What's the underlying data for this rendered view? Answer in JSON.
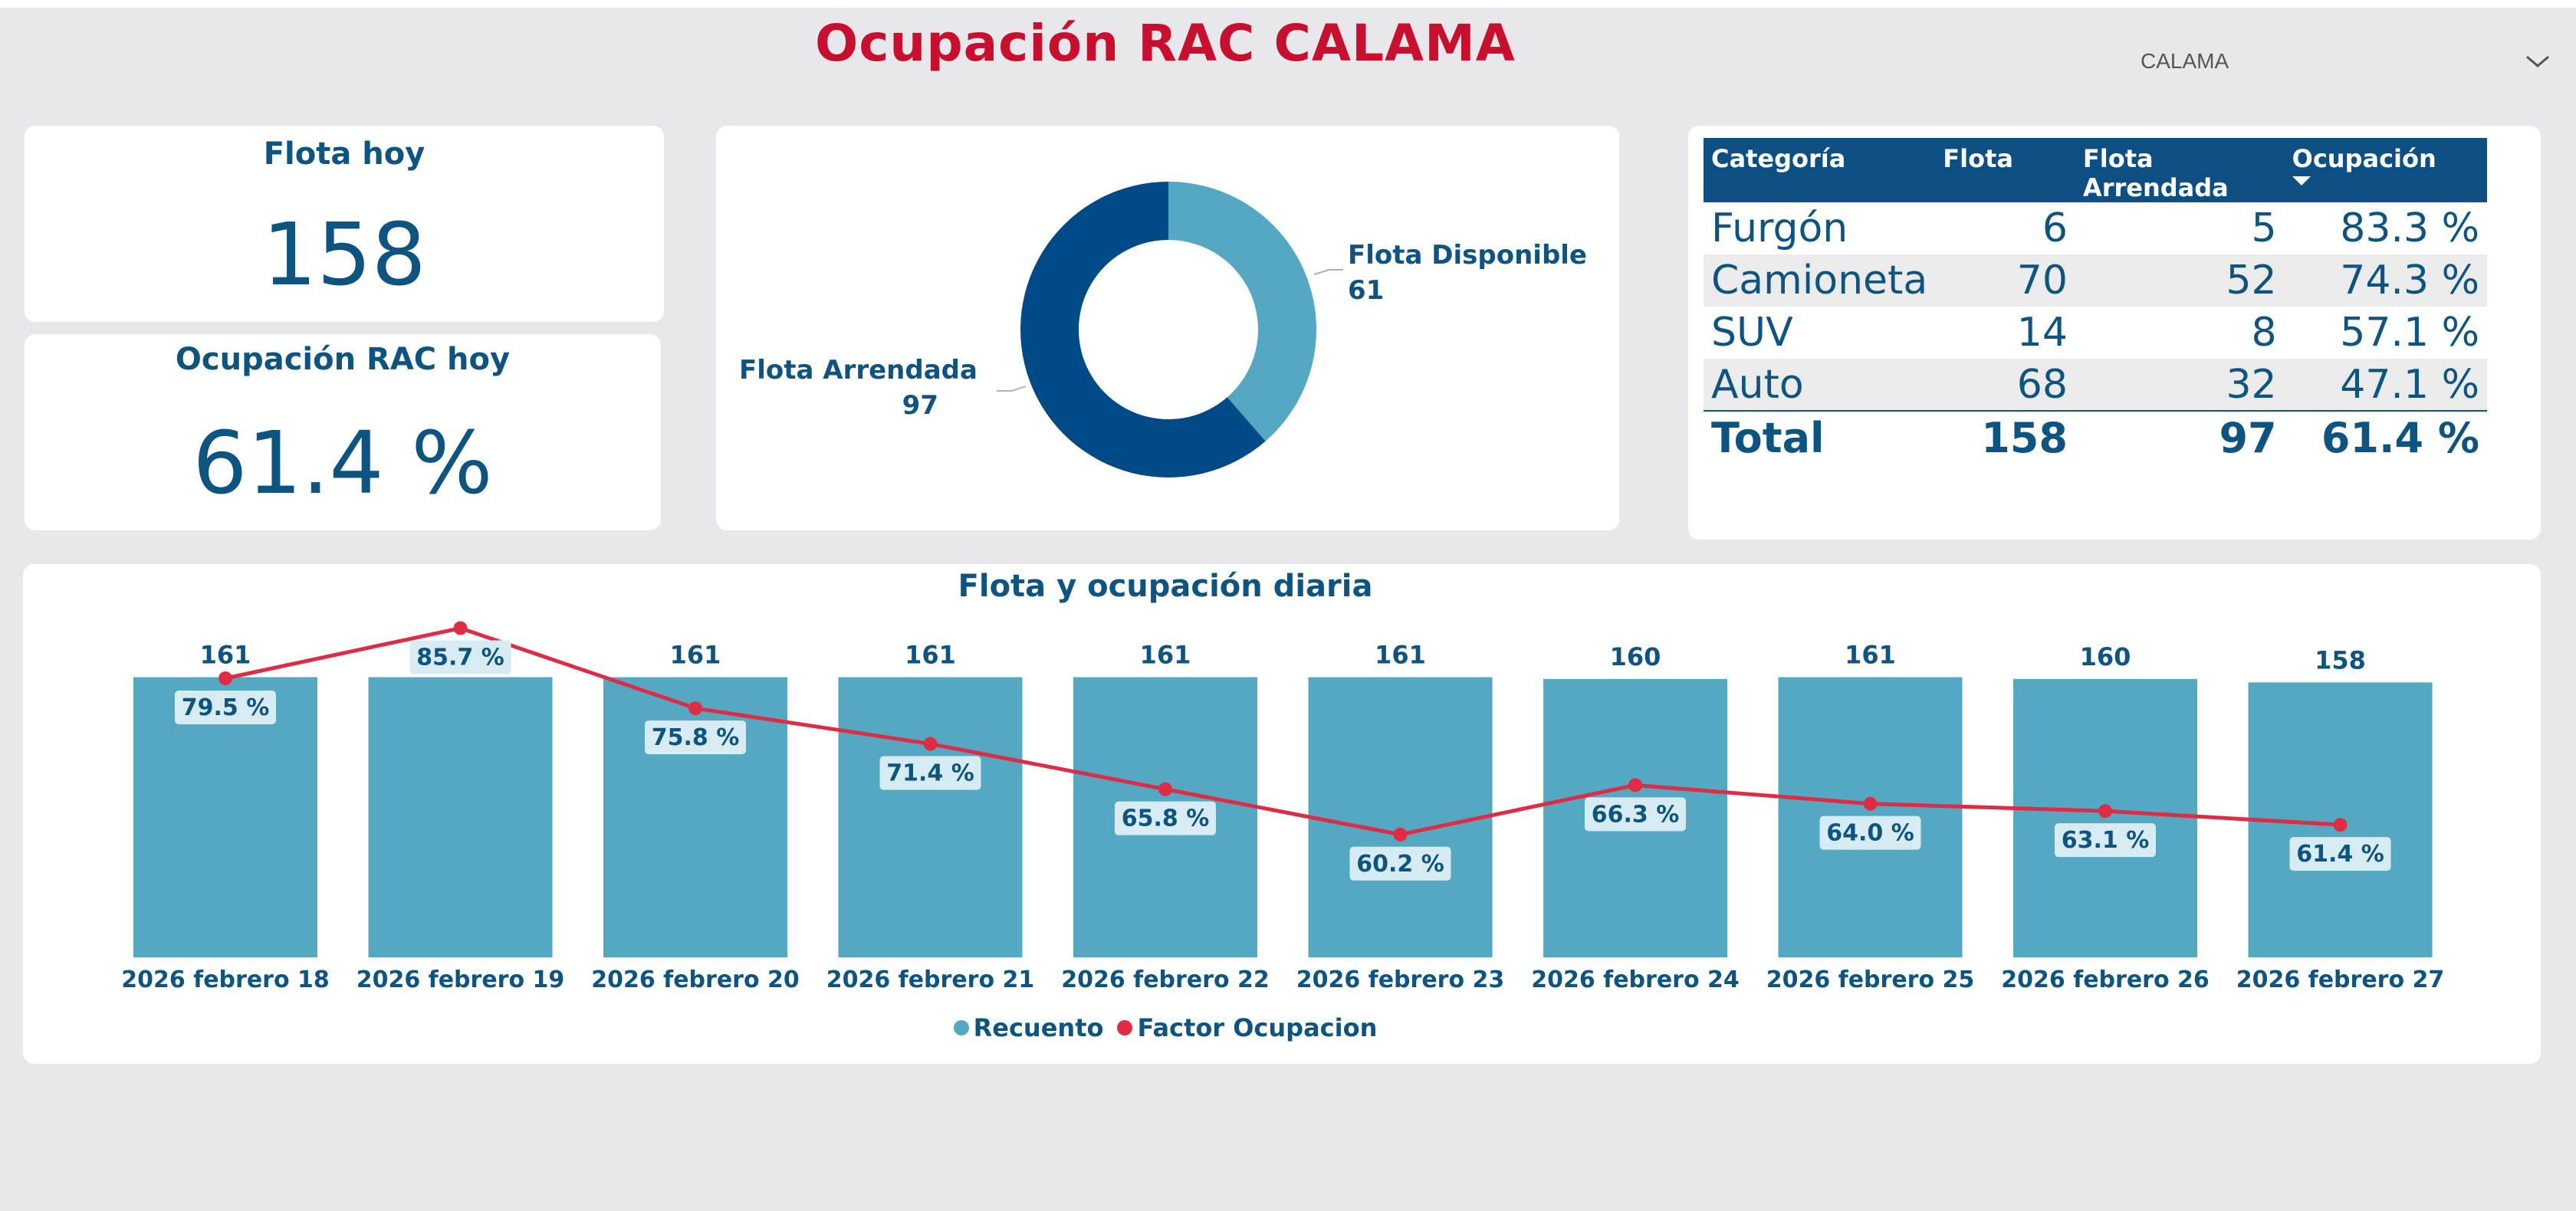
{
  "header": {
    "title": "Ocupación RAC CALAMA"
  },
  "slicer": {
    "selected": "CALAMA"
  },
  "kpis": {
    "fleet_today": {
      "label": "Flota hoy",
      "value": "158"
    },
    "occupancy_today": {
      "label": "Ocupación RAC hoy",
      "value": "61.4 %"
    }
  },
  "donut": {
    "slices": [
      {
        "name": "Flota Disponible",
        "value": 61,
        "color": "#55a8c2"
      },
      {
        "name": "Flota Arrendada",
        "value": 97,
        "color": "#004a87"
      }
    ]
  },
  "table": {
    "headers": [
      "Categoría",
      "Flota",
      "Flota Arrendada",
      "Ocupación"
    ],
    "rows": [
      [
        "Furgón",
        "6",
        "5",
        "83.3 %"
      ],
      [
        "Camioneta",
        "70",
        "52",
        "74.3 %"
      ],
      [
        "SUV",
        "14",
        "8",
        "57.1 %"
      ],
      [
        "Auto",
        "68",
        "32",
        "47.1 %"
      ]
    ],
    "total": [
      "Total",
      "158",
      "97",
      "61.4 %"
    ]
  },
  "chart_data": {
    "type": "bar",
    "title": "Flota y ocupación diaria",
    "categories": [
      "2026 febrero 18",
      "2026 febrero 19",
      "2026 febrero 20",
      "2026 febrero 21",
      "2026 febrero 22",
      "2026 febrero 23",
      "2026 febrero 24",
      "2026 febrero 25",
      "2026 febrero 26",
      "2026 febrero 27"
    ],
    "series": [
      {
        "name": "Recuento",
        "type": "bar",
        "values": [
          161,
          161,
          161,
          161,
          161,
          161,
          160,
          161,
          160,
          158
        ],
        "color": "#55a8c2"
      },
      {
        "name": "Factor Ocupacion",
        "type": "line",
        "values": [
          79.5,
          85.7,
          75.8,
          71.4,
          65.8,
          60.2,
          66.3,
          64.0,
          63.1,
          61.4
        ],
        "value_labels": [
          "79.5 %",
          "85.7 %",
          "75.8 %",
          "71.4 %",
          "65.8 %",
          "60.2 %",
          "66.3 %",
          "64.0 %",
          "63.1 %",
          "61.4 %"
        ],
        "color": "#e02b44"
      }
    ],
    "legend_position": "bottom-center"
  }
}
